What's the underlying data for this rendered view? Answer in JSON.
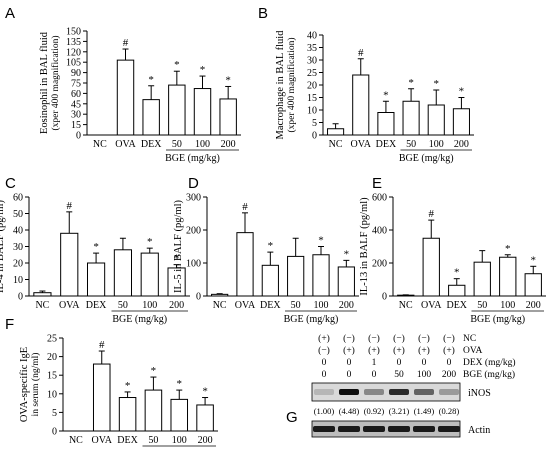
{
  "chart_data": [
    {
      "type": "bar",
      "panel": "A",
      "title": "",
      "ylabel": [
        "Eosinophil in BAL fluid",
        "(xper 400 magnification)"
      ],
      "categories": [
        "NC",
        "OVA",
        "DEX",
        "50",
        "100",
        "200"
      ],
      "group_label": "BGE",
      "group_unit": "(mg/kg)",
      "values": [
        0,
        108,
        51,
        72,
        67,
        52
      ],
      "errors": [
        0,
        16,
        20,
        20,
        18,
        18
      ],
      "markers": [
        "",
        "#",
        "*",
        "*",
        "*",
        "*"
      ],
      "ylim": [
        0,
        150
      ],
      "yticks": [
        0,
        15,
        30,
        45,
        60,
        75,
        90,
        105,
        120,
        135,
        150
      ]
    },
    {
      "type": "bar",
      "panel": "B",
      "title": "",
      "ylabel": [
        "Macrophage in BAL fluid",
        "(xper 400 magnification)"
      ],
      "categories": [
        "NC",
        "OVA",
        "DEX",
        "50",
        "100",
        "200"
      ],
      "group_label": "BGE",
      "group_unit": "(mg/kg)",
      "values": [
        2.5,
        24,
        9,
        13.5,
        12,
        10.5
      ],
      "errors": [
        2,
        6.5,
        4.5,
        5,
        6,
        4.5
      ],
      "markers": [
        "",
        "#",
        "*",
        "*",
        "*",
        "*"
      ],
      "ylim": [
        0,
        40
      ],
      "yticks": [
        0,
        5,
        10,
        15,
        20,
        25,
        30,
        35,
        40
      ]
    },
    {
      "type": "bar",
      "panel": "C",
      "title": "",
      "ylabel": [
        "IL-4 in BALF (pg/ml)"
      ],
      "categories": [
        "NC",
        "OVA",
        "DEX",
        "50",
        "100",
        "200"
      ],
      "group_label": "BGE",
      "group_unit": "(mg/kg)",
      "values": [
        2,
        38,
        20,
        28,
        26,
        17
      ],
      "errors": [
        1,
        13,
        6,
        7,
        3,
        2
      ],
      "markers": [
        "",
        "#",
        "*",
        "",
        "*",
        "*"
      ],
      "ylim": [
        0,
        60
      ],
      "yticks": [
        0,
        10,
        20,
        30,
        40,
        50,
        60
      ]
    },
    {
      "type": "bar",
      "panel": "D",
      "title": "",
      "ylabel": [
        "IL-5 in BALF (pg/ml)"
      ],
      "categories": [
        "NC",
        "OVA",
        "DEX",
        "50",
        "100",
        "200"
      ],
      "group_label": "BGE",
      "group_unit": "(mg/kg)",
      "values": [
        5,
        192,
        93,
        120,
        125,
        88
      ],
      "errors": [
        2,
        60,
        40,
        55,
        25,
        20
      ],
      "markers": [
        "",
        "#",
        "*",
        "",
        "*",
        "*"
      ],
      "ylim": [
        0,
        300
      ],
      "yticks": [
        0,
        100,
        200,
        300
      ]
    },
    {
      "type": "bar",
      "panel": "E",
      "title": "",
      "ylabel": [
        "IL-13 in BALF (pg/ml)"
      ],
      "categories": [
        "NC",
        "OVA",
        "DEX",
        "50",
        "100",
        "200"
      ],
      "group_label": "BGE",
      "group_unit": "(mg/kg)",
      "values": [
        5,
        350,
        65,
        205,
        235,
        135
      ],
      "errors": [
        2,
        110,
        40,
        70,
        15,
        45
      ],
      "markers": [
        "",
        "#",
        "*",
        "",
        "*",
        "*"
      ],
      "ylim": [
        0,
        600
      ],
      "yticks": [
        0,
        200,
        400,
        600
      ]
    },
    {
      "type": "bar",
      "panel": "F",
      "title": "",
      "ylabel": [
        "OVA-specific IgE",
        "in serum (ng/ml)"
      ],
      "categories": [
        "NC",
        "OVA",
        "DEX",
        "50",
        "100",
        "200"
      ],
      "group_label": "BGE",
      "group_unit": "(mg/kg)",
      "values": [
        0,
        18,
        9,
        11,
        8.5,
        7
      ],
      "errors": [
        0,
        3.5,
        1.5,
        3.5,
        2.5,
        2
      ],
      "markers": [
        "",
        "#",
        "*",
        "*",
        "*",
        "*"
      ],
      "ylim": [
        0,
        25
      ],
      "yticks": [
        0,
        5,
        10,
        15,
        20,
        25
      ]
    }
  ],
  "blot": {
    "panel": "G",
    "row_labels": [
      "NC",
      "OVA",
      "DEX (mg/kg)",
      "BGE (mg/kg)"
    ],
    "row_values": [
      [
        "(+)",
        "(−)",
        "(−)",
        "(−)",
        "(−)",
        "(−)"
      ],
      [
        "(−)",
        "(+)",
        "(+)",
        "(+)",
        "(+)",
        "(+)"
      ],
      [
        "0",
        "0",
        "1",
        "0",
        "0",
        "0"
      ],
      [
        "0",
        "0",
        "0",
        "50",
        "100",
        "200"
      ]
    ],
    "bands": [
      {
        "label": "iNOS",
        "intensity": [
          0.1,
          1.0,
          0.35,
          0.85,
          0.55,
          0.25
        ]
      },
      {
        "label": "Actin",
        "intensity": [
          1,
          1,
          1,
          1,
          1,
          1
        ]
      }
    ],
    "quantification": [
      "(1.00)",
      "(4.48)",
      "(0.92)",
      "(3.21)",
      "(1.49)",
      "(0.28)"
    ]
  }
}
